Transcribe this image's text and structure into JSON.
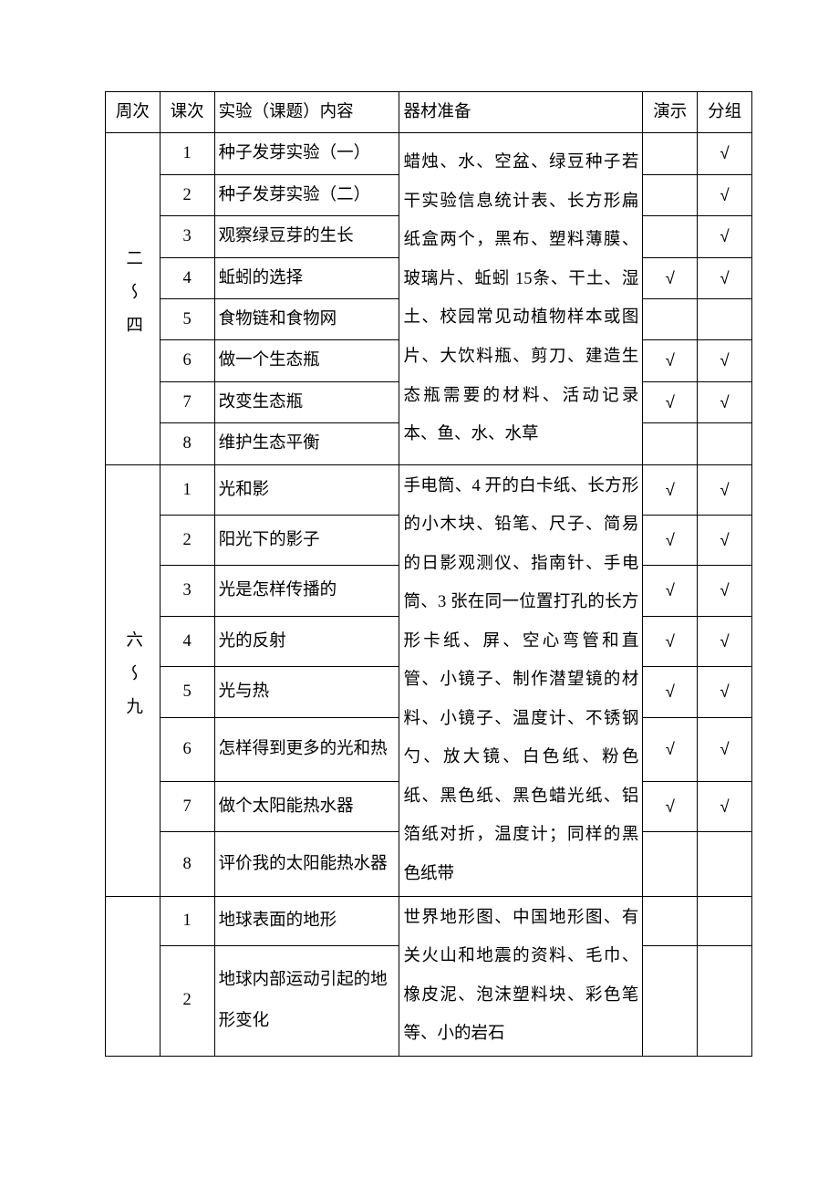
{
  "headers": {
    "week": "周次",
    "lesson": "课次",
    "topic": "实验（课题）内容",
    "equip": "器材准备",
    "demo": "演示",
    "group": "分组"
  },
  "check_mark": "√",
  "sections": [
    {
      "week_label": "二～四",
      "equipment": "蜡烛、水、空盆、绿豆种子若干实验信息统计表、长方形扁纸盒两个，黑布、塑料薄膜、玻璃片、蚯蚓 15条、干土、湿土、校园常见动植物样本或图片、大饮料瓶、剪刀、建造生态瓶需要的材料、活动记录本、鱼、水、水草",
      "rows": [
        {
          "lesson": "1",
          "topic": "种子发芽实验（一）",
          "demo": false,
          "group": true
        },
        {
          "lesson": "2",
          "topic": "种子发芽实验（二）",
          "demo": false,
          "group": true
        },
        {
          "lesson": "3",
          "topic": "观察绿豆芽的生长",
          "demo": false,
          "group": true
        },
        {
          "lesson": "4",
          "topic": "蚯蚓的选择",
          "demo": true,
          "group": true
        },
        {
          "lesson": "5",
          "topic": "食物链和食物网",
          "demo": false,
          "group": false
        },
        {
          "lesson": "6",
          "topic": "做一个生态瓶",
          "demo": true,
          "group": true
        },
        {
          "lesson": "7",
          "topic": "改变生态瓶",
          "demo": true,
          "group": true
        },
        {
          "lesson": "8",
          "topic": "维护生态平衡",
          "demo": false,
          "group": false
        }
      ]
    },
    {
      "week_label": "六～九",
      "equipment": "手电筒、4 开的白卡纸、长方形的小木块、铅笔、尺子、简易的日影观测仪、指南针、手电筒、3 张在同一位置打孔的长方形卡纸、屏、空心弯管和直管、小镜子、制作潜望镜的材料、小镜子、温度计、不锈钢勺、放大镜、白色纸、粉色纸、黑色纸、黑色蜡光纸、铝箔纸对折，温度计；同样的黑色纸带",
      "rows": [
        {
          "lesson": "1",
          "topic": "光和影",
          "demo": true,
          "group": true
        },
        {
          "lesson": "2",
          "topic": "阳光下的影子",
          "demo": true,
          "group": true
        },
        {
          "lesson": "3",
          "topic": "光是怎样传播的",
          "demo": true,
          "group": true
        },
        {
          "lesson": "4",
          "topic": "光的反射",
          "demo": true,
          "group": true
        },
        {
          "lesson": "5",
          "topic": "光与热",
          "demo": true,
          "group": true
        },
        {
          "lesson": "6",
          "topic": "怎样得到更多的光和热",
          "demo": true,
          "group": true
        },
        {
          "lesson": "7",
          "topic": "做个太阳能热水器",
          "demo": true,
          "group": true
        },
        {
          "lesson": "8",
          "topic": "评价我的太阳能热水器",
          "demo": false,
          "group": false
        }
      ]
    },
    {
      "week_label": "",
      "equipment": "世界地形图、中国地形图、有关火山和地震的资料、毛巾、橡皮泥、泡沫塑料块、彩色笔等、小的岩石",
      "rows": [
        {
          "lesson": "1",
          "topic": "地球表面的地形",
          "demo": false,
          "group": false
        },
        {
          "lesson": "2",
          "topic": "地球内部运动引起的地形变化",
          "demo": false,
          "group": false
        }
      ]
    }
  ]
}
